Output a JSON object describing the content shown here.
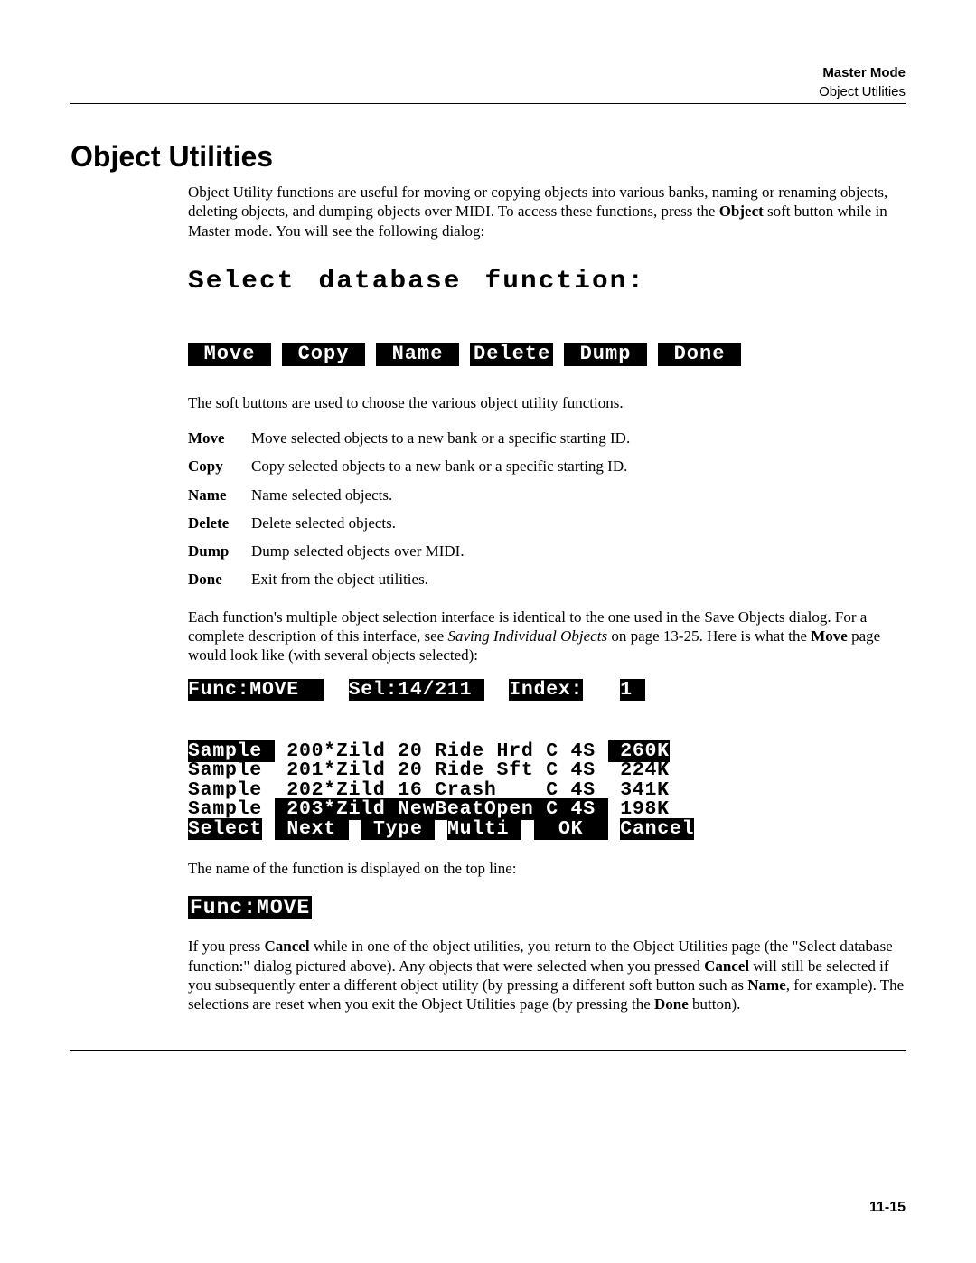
{
  "header": {
    "mode": "Master Mode",
    "subtitle": "Object Utilities"
  },
  "heading": "Object Utilities",
  "intro_parts": {
    "p1": "Object Utility functions are useful for moving or copying objects into various banks, naming or renaming objects, deleting objects, and dumping objects over MIDI. To access these functions, press the ",
    "b1": "Object",
    "p2": " soft button while in Master mode. You will see the following dialog:"
  },
  "lcd1": {
    "title": "Select database function:",
    "buttons": [
      "Move",
      "Copy",
      "Name",
      "Delete",
      "Dump",
      "Done"
    ]
  },
  "after_lcd1": "The soft buttons are used to choose the various object utility functions.",
  "defs": [
    {
      "term": "Move",
      "desc": "Move selected objects to a new bank or a specific starting ID."
    },
    {
      "term": "Copy",
      "desc": "Copy selected objects to a new bank or a specific starting ID."
    },
    {
      "term": "Name",
      "desc": "Name selected objects."
    },
    {
      "term": "Delete",
      "desc": "Delete selected objects."
    },
    {
      "term": "Dump",
      "desc": "Dump selected objects over MIDI."
    },
    {
      "term": "Done",
      "desc": "Exit from the object utilities."
    }
  ],
  "mid_para": {
    "p1": "Each function's multiple object selection interface is identical to the one used in the Save Objects dialog. For a complete description of this interface, see ",
    "i1": "Saving Individual Objects",
    "p2": " on page 13-25. Here is what the ",
    "b1": "Move",
    "p3": " page would look like (with several objects selected):"
  },
  "lcd2": {
    "top": {
      "func": "Func:MOVE  ",
      "gap1": "  ",
      "sel": "Sel:14/211 ",
      "gap2": "  ",
      "idxlbl": "Index:",
      "gap3": "   ",
      "idxval": "1 "
    },
    "rows": [
      {
        "c1": "Sample ",
        "c2": " 200*Zild 20 Ride Hrd C 4S ",
        "c3": " 260K"
      },
      {
        "c1": "Sample ",
        "c2": " 201*Zild 20 Ride Sft C 4S ",
        "c3": " 224K"
      },
      {
        "c1": "Sample ",
        "c2": " 202*Zild 16 Crash    C 4S ",
        "c3": " 341K"
      },
      {
        "c1": "Sample ",
        "c2": " 203*Zild NewBeatOpen C 4S ",
        "c3": " 198K"
      }
    ],
    "bottom": {
      "b1": "Select",
      "g1": " ",
      "b2": " Next ",
      "g2": " ",
      "b3": " Type ",
      "g3": " ",
      "b4": "Multi ",
      "g4": " ",
      "b5": "  OK  ",
      "g5": " ",
      "b6": "Cancel"
    }
  },
  "after_lcd2": "The name of the function is displayed on the top line:",
  "lcd3": "Func:MOVE",
  "final_para": {
    "p1": "If you press ",
    "b1": "Cancel",
    "p2": " while in one of the object utilities, you return to the Object Utilities page (the \"Select database function:\" dialog pictured above). Any objects that were selected when you pressed ",
    "b2": "Cancel",
    "p3": " will still be selected if you subsequently enter a different object utility (by pressing a different soft button such as ",
    "b3": "Name",
    "p4": ", for example). The selections are reset when you exit the Object Utilities page (by pressing the ",
    "b4": "Done",
    "p5": " button)."
  },
  "page_number": "11-15"
}
